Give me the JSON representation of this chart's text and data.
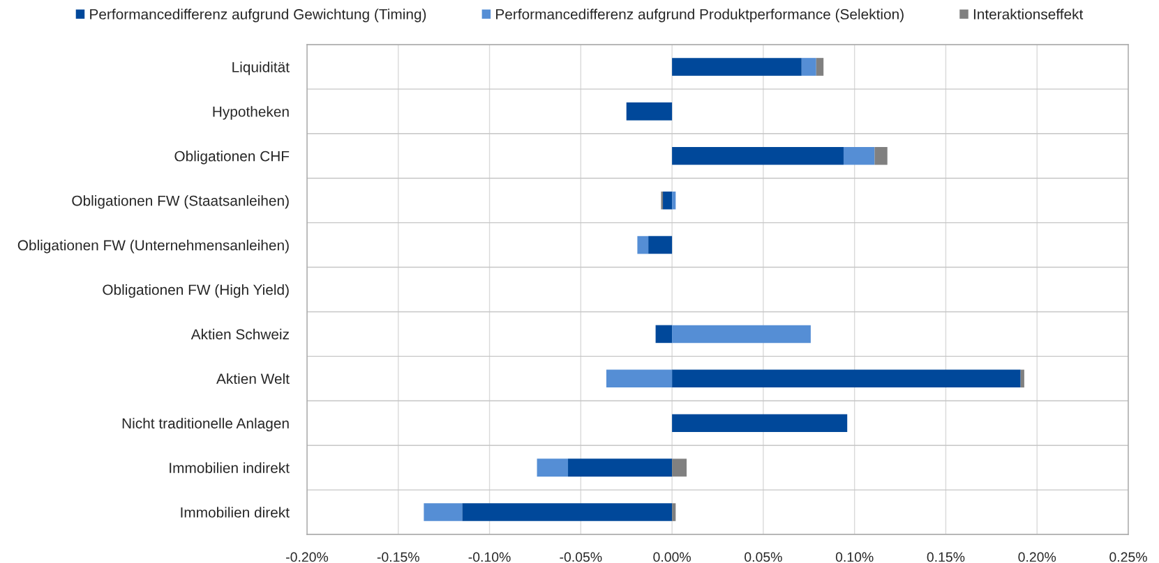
{
  "chart_data": {
    "type": "bar",
    "orientation": "horizontal",
    "stacked": true,
    "categories": [
      "Liquidität",
      "Hypotheken",
      "Obligationen CHF",
      "Obligationen FW (Staatsanleihen)",
      "Obligationen FW (Unternehmensanleihen)",
      "Obligationen FW (High Yield)",
      "Aktien Schweiz",
      "Aktien Welt",
      "Nicht traditionelle Anlagen",
      "Immobilien indirekt",
      "Immobilien direkt"
    ],
    "series": [
      {
        "name": "Performancedifferenz aufgrund Gewichtung (Timing)",
        "color": "#00489a",
        "values": [
          0.071,
          -0.025,
          0.094,
          -0.005,
          -0.013,
          null,
          -0.009,
          0.191,
          0.096,
          -0.057,
          -0.115
        ]
      },
      {
        "name": "Performancedifferenz aufgrund Produktperformance (Selektion)",
        "color": "#558ed5",
        "values": [
          0.008,
          null,
          0.017,
          0.002,
          -0.006,
          null,
          0.076,
          -0.036,
          null,
          -0.017,
          -0.021
        ]
      },
      {
        "name": "Interaktionseffekt",
        "color": "#808080",
        "values": [
          0.004,
          null,
          0.007,
          -0.001,
          null,
          null,
          null,
          0.002,
          null,
          0.008,
          0.002
        ]
      }
    ],
    "xlim": [
      -0.2,
      0.25
    ],
    "xticks": [
      {
        "value": -0.2,
        "label": "-0.20%"
      },
      {
        "value": -0.15,
        "label": "-0.15%"
      },
      {
        "value": -0.1,
        "label": "-0.10%"
      },
      {
        "value": -0.05,
        "label": "-0.05%"
      },
      {
        "value": 0,
        "label": "0.00%"
      },
      {
        "value": 0.05,
        "label": "0.05%"
      },
      {
        "value": 0.1,
        "label": "0.10%"
      },
      {
        "value": 0.15,
        "label": "0.15%"
      },
      {
        "value": 0.2,
        "label": "0.20%"
      },
      {
        "value": 0.25,
        "label": "0.25%"
      }
    ],
    "grid": true,
    "legend": "top"
  }
}
